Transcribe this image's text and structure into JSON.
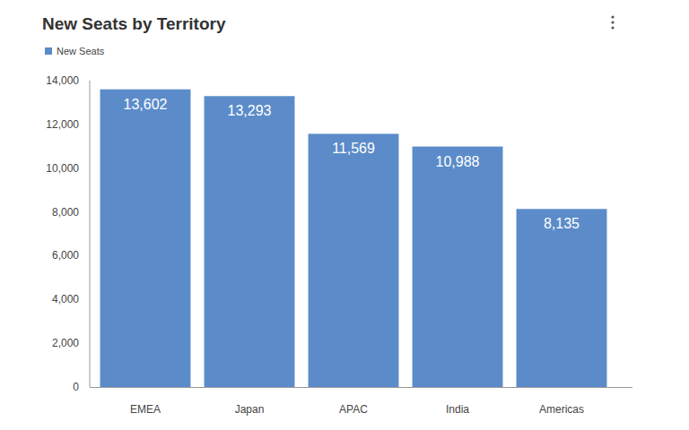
{
  "chart_data": {
    "type": "bar",
    "title": "New Seats by Territory",
    "categories": [
      "EMEA",
      "Japan",
      "APAC",
      "India",
      "Americas"
    ],
    "series": [
      {
        "name": "New Seats",
        "color": "#5b8cc9",
        "values": [
          13602,
          13293,
          11569,
          10988,
          8135
        ],
        "value_labels": [
          "13,602",
          "13,293",
          "11,569",
          "10,988",
          "8,135"
        ]
      }
    ],
    "ylim": [
      0,
      14000
    ],
    "yticks": [
      0,
      {
        "value": 2000,
        "label": "2,000"
      },
      {
        "value": 4000,
        "label": "4,000"
      },
      {
        "value": 6000,
        "label": "6,000"
      },
      {
        "value": 8000,
        "label": "8,000"
      },
      {
        "value": 10000,
        "label": "10,000"
      },
      {
        "value": 12000,
        "label": "12,000"
      },
      {
        "value": 14000,
        "label": "14,000"
      }
    ],
    "grid": false,
    "legend": "top-left",
    "data_labels": true
  }
}
